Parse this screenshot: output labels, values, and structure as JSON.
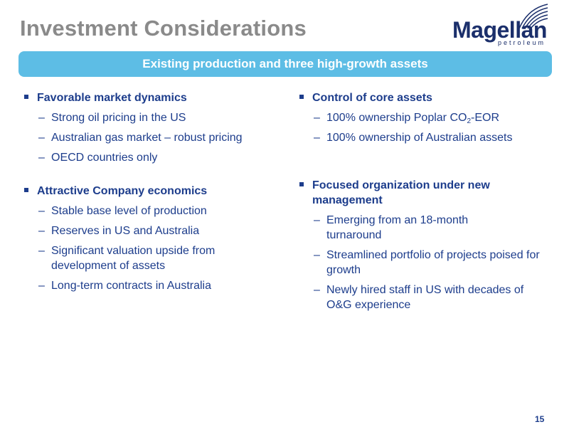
{
  "slide": {
    "title": "Investment Considerations",
    "banner": "Existing production and three high-growth assets",
    "page_number": "15"
  },
  "logo": {
    "name": "Magellan",
    "subtitle": "petroleum"
  },
  "left_column": [
    {
      "heading": "Favorable market dynamics",
      "items": [
        "Strong oil pricing in the US",
        "Australian gas market – robust pricing",
        "OECD countries only"
      ]
    },
    {
      "heading": "Attractive Company economics",
      "items": [
        "Stable base level of production",
        "Reserves in US and Australia",
        "Significant valuation upside from development of assets",
        "Long-term contracts in Australia"
      ]
    }
  ],
  "right_column": [
    {
      "heading": "Control of core assets",
      "items": [
        {
          "pre": "100% ownership Poplar CO",
          "sub": "2",
          "post": "-EOR"
        },
        "100% ownership of Australian assets"
      ]
    },
    {
      "heading": "Focused organization under new management",
      "items": [
        "Emerging from an 18-month turnaround",
        "Streamlined portfolio of projects poised for growth",
        "Newly hired staff in US with decades of O&G experience"
      ]
    }
  ],
  "colors": {
    "title": "#8a8a8a",
    "banner_bg": "#5dbde5",
    "text": "#1d3d8c",
    "logo": "#1b2f6b"
  }
}
